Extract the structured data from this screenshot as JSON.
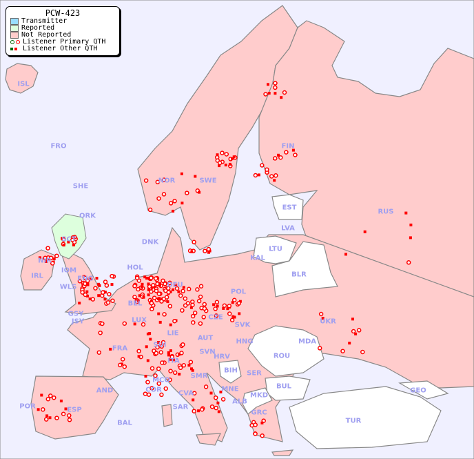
{
  "legend": {
    "title": "PCW-423",
    "items": [
      {
        "label": "Transmitter",
        "color": "#99ddff"
      },
      {
        "label": "Reported",
        "color": "#ddffdd"
      },
      {
        "label": "Not Reported",
        "color": "#ffcccc"
      },
      {
        "label": "Listener Primary QTH"
      },
      {
        "label": "Listener Other QTH"
      }
    ]
  },
  "colors": {
    "sea": "#f0f0ff",
    "not_reported": "#ffcccc",
    "reported": "#ddffdd",
    "no_data": "#ffffff",
    "marker": "#ff0000",
    "label": "#9f9ff0"
  },
  "countries": [
    "ISL",
    "FRO",
    "SHE",
    "ORK",
    "NOR",
    "SWE",
    "FIN",
    "EST",
    "LVA",
    "LTU",
    "KAL",
    "BLR",
    "RUS",
    "DNK",
    "HOL",
    "DEU",
    "POL",
    "BEL",
    "LUX",
    "CZE",
    "SVK",
    "UKR",
    "MDA",
    "GSY",
    "JSY",
    "FRA",
    "SUI",
    "LIE",
    "AUT",
    "HNG",
    "ROU",
    "SVN",
    "HRV",
    "BIH",
    "SER",
    "ITA",
    "SMR",
    "MCO",
    "COR",
    "CVA",
    "MNE",
    "ALB",
    "MKD",
    "BUL",
    "GRC",
    "TUR",
    "GEO",
    "AND",
    "POR",
    "ESP",
    "BAL",
    "SAR",
    "IRL",
    "NIR",
    "IOM",
    "WLS",
    "ENG",
    "SCT"
  ]
}
